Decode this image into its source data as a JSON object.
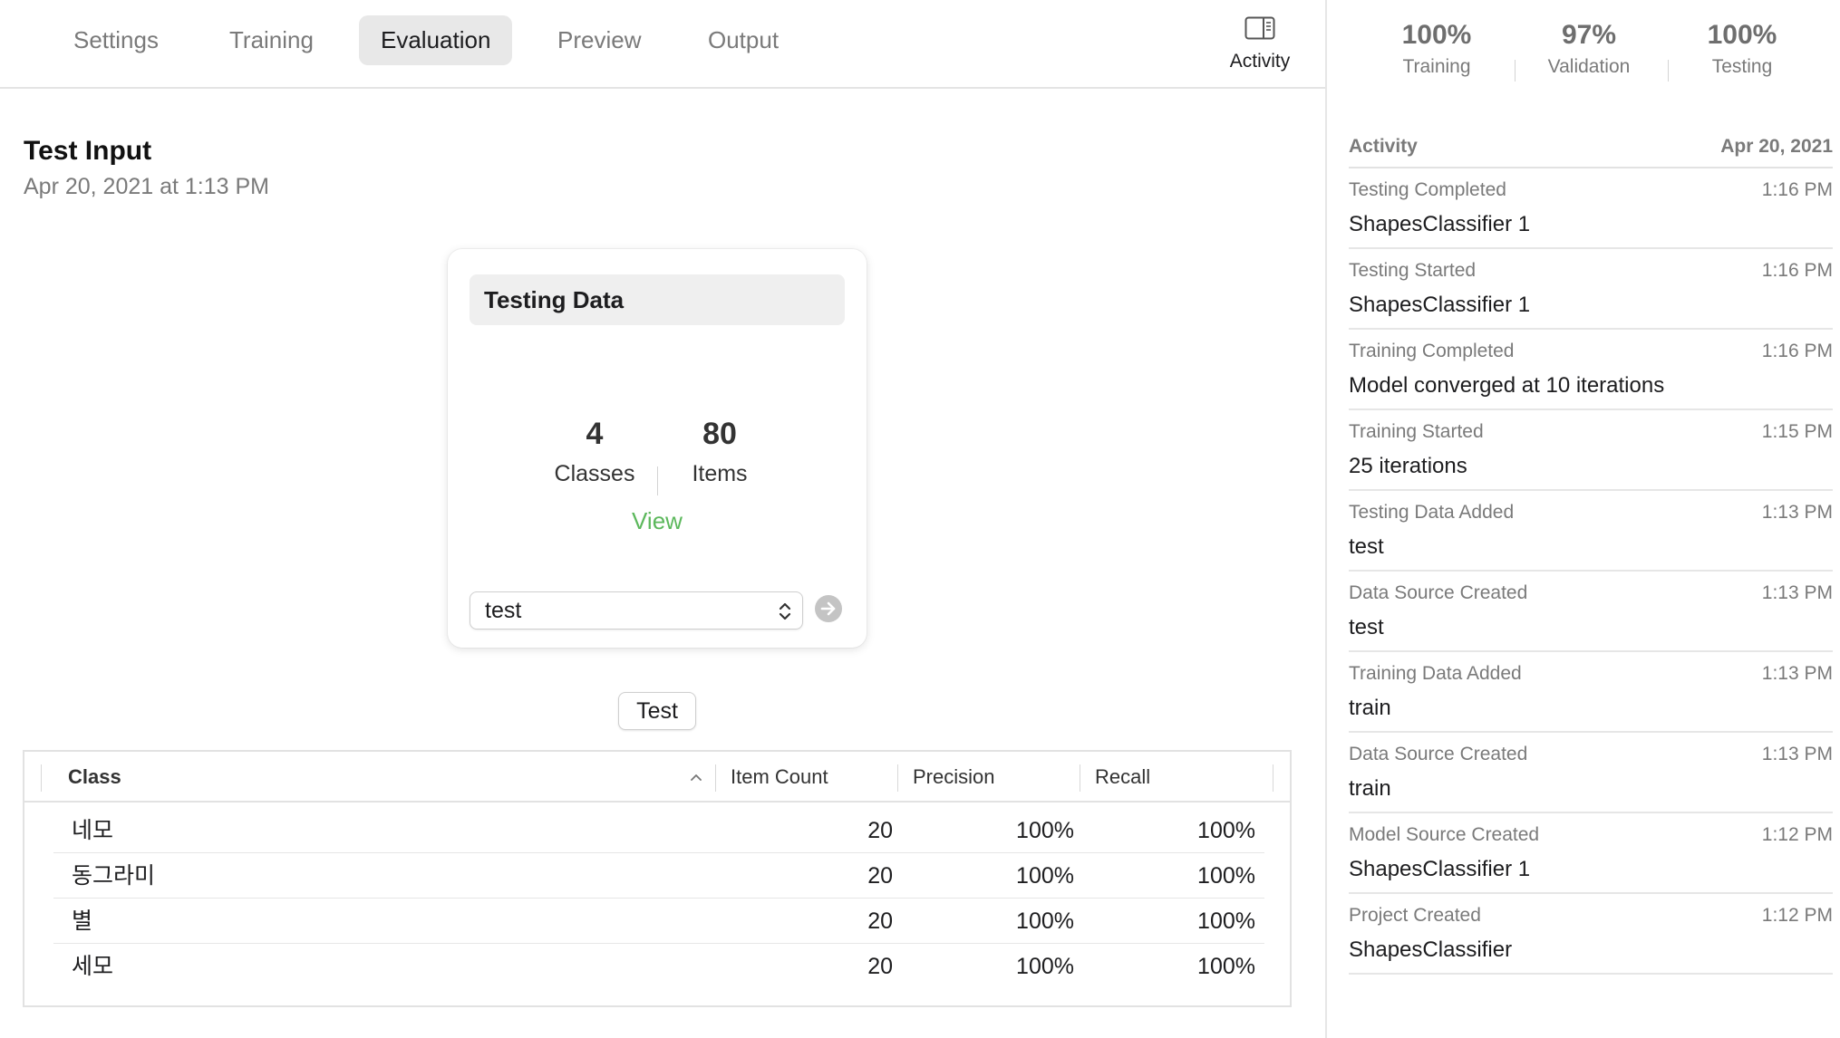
{
  "tabs": [
    {
      "label": "Settings"
    },
    {
      "label": "Training"
    },
    {
      "label": "Evaluation",
      "active": true
    },
    {
      "label": "Preview"
    },
    {
      "label": "Output"
    }
  ],
  "activity_toggle": {
    "label": "Activity",
    "icon": "sidebar-icon"
  },
  "test_input": {
    "title": "Test Input",
    "date": "Apr 20, 2021 at 1:13 PM"
  },
  "card": {
    "title": "Testing Data",
    "classes_count": "4",
    "classes_label": "Classes",
    "items_count": "80",
    "items_label": "Items",
    "view_label": "View",
    "source_value": "test",
    "accent_color": "#5cb85c"
  },
  "test_button": {
    "label": "Test"
  },
  "table": {
    "headers": {
      "class": "Class",
      "item_count": "Item Count",
      "precision": "Precision",
      "recall": "Recall"
    },
    "rows": [
      {
        "class": "네모",
        "item_count": "20",
        "precision": "100%",
        "recall": "100%"
      },
      {
        "class": "동그라미",
        "item_count": "20",
        "precision": "100%",
        "recall": "100%"
      },
      {
        "class": "별",
        "item_count": "20",
        "precision": "100%",
        "recall": "100%"
      },
      {
        "class": "세모",
        "item_count": "20",
        "precision": "100%",
        "recall": "100%"
      }
    ]
  },
  "metrics": [
    {
      "value": "100%",
      "label": "Training"
    },
    {
      "value": "97%",
      "label": "Validation"
    },
    {
      "value": "100%",
      "label": "Testing"
    }
  ],
  "activity": {
    "title": "Activity",
    "date": "Apr 20, 2021",
    "items": [
      {
        "title": "Testing Completed",
        "time": "1:16 PM",
        "detail": "ShapesClassifier 1"
      },
      {
        "title": "Testing Started",
        "time": "1:16 PM",
        "detail": "ShapesClassifier 1"
      },
      {
        "title": "Training Completed",
        "time": "1:16 PM",
        "detail": "Model converged at 10 iterations"
      },
      {
        "title": "Training Started",
        "time": "1:15 PM",
        "detail": "25 iterations"
      },
      {
        "title": "Testing Data Added",
        "time": "1:13 PM",
        "detail": "test"
      },
      {
        "title": "Data Source Created",
        "time": "1:13 PM",
        "detail": "test"
      },
      {
        "title": "Training Data Added",
        "time": "1:13 PM",
        "detail": "train"
      },
      {
        "title": "Data Source Created",
        "time": "1:13 PM",
        "detail": "train"
      },
      {
        "title": "Model Source Created",
        "time": "1:12 PM",
        "detail": "ShapesClassifier 1"
      },
      {
        "title": "Project Created",
        "time": "1:12 PM",
        "detail": "ShapesClassifier"
      }
    ]
  }
}
